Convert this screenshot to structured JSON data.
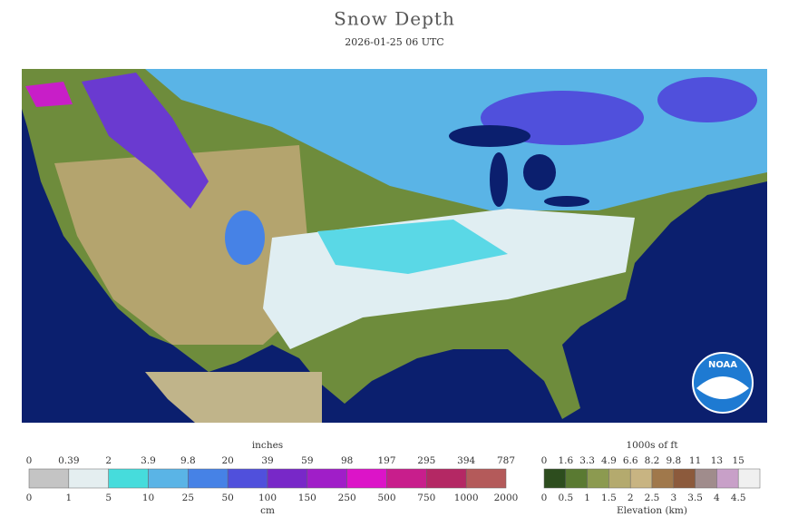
{
  "header": {
    "title": "Snow Depth",
    "subtitle": "2026-01-25 06 UTC"
  },
  "logo": "NOAA",
  "snow_legend": {
    "unit_top": "inches",
    "ticks_top": [
      "0",
      "0.39",
      "2",
      "3.9",
      "9.8",
      "20",
      "39",
      "59",
      "98",
      "197",
      "295",
      "394",
      "787"
    ],
    "ticks_bottom": [
      "0",
      "1",
      "5",
      "10",
      "25",
      "50",
      "100",
      "150",
      "250",
      "500",
      "750",
      "1000",
      "2000"
    ],
    "unit_bottom": "cm",
    "colors": [
      "#c4c4c4",
      "#e4eef0",
      "#46dcdc",
      "#5ab4e6",
      "#4682e6",
      "#5050dc",
      "#7828c8",
      "#a01ec8",
      "#dc14c8",
      "#c81e8c",
      "#b42864",
      "#b45a5a"
    ]
  },
  "elevation_legend": {
    "unit_top": "1000s of ft",
    "ticks_top": [
      "0",
      "1.6",
      "3.3",
      "4.9",
      "6.6",
      "8.2",
      "9.8",
      "11",
      "13",
      "15"
    ],
    "ticks_bottom": [
      "0",
      "0.5",
      "1",
      "1.5",
      "2",
      "2.5",
      "3",
      "3.5",
      "4",
      "4.5"
    ],
    "unit_bottom": "Elevation (km)",
    "colors": [
      "#2d4d1e",
      "#5a7a32",
      "#8c9a50",
      "#b4aa6e",
      "#c8b482",
      "#a0784b",
      "#8c5a3c",
      "#a08c8c",
      "#c8a0c8",
      "#f0f0f0"
    ]
  }
}
